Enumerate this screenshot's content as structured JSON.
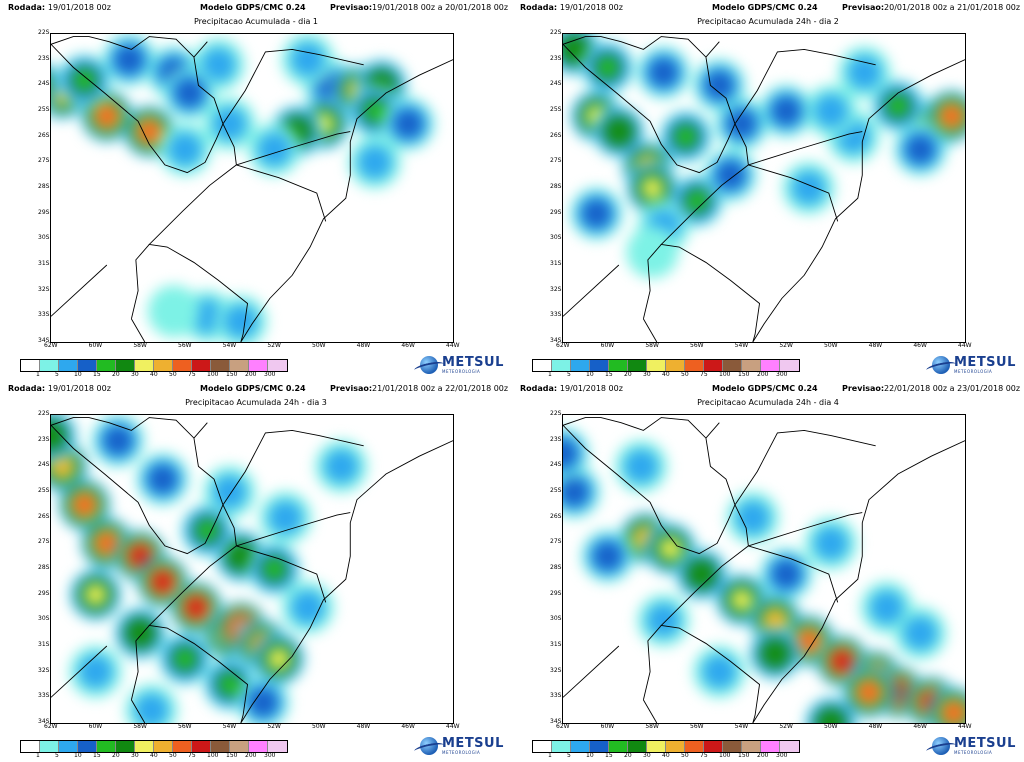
{
  "header": {
    "rodada_label": "Rodada:",
    "rodada_value": "19/01/2018 00z",
    "model": "Modelo GDPS/CMC 0.24",
    "previsao_label": "Previsao:"
  },
  "panels": [
    {
      "id": "p0",
      "subtitle": "Precipitacao Acumulada - dia 1",
      "previsao_value": "19/01/2018 00z a 20/01/2018 00z",
      "blobs": [
        {
          "lat": -24.3,
          "lon": -61.5,
          "val": 40
        },
        {
          "lat": -25.2,
          "lon": -59.5,
          "val": 50
        },
        {
          "lat": -25.8,
          "lon": -57.6,
          "val": 50
        },
        {
          "lat": -24.0,
          "lon": -62.8,
          "val": 30
        },
        {
          "lat": -23.8,
          "lon": -60.5,
          "val": 15
        },
        {
          "lat": -23.0,
          "lon": -58.5,
          "val": 10
        },
        {
          "lat": -23.5,
          "lon": -56.5,
          "val": 10
        },
        {
          "lat": -23.2,
          "lon": -54.5,
          "val": 5
        },
        {
          "lat": -24.3,
          "lon": -55.8,
          "val": 10
        },
        {
          "lat": -25.5,
          "lon": -54.0,
          "val": 5
        },
        {
          "lat": -26.5,
          "lon": -56.0,
          "val": 5
        },
        {
          "lat": -24.0,
          "lon": -49.5,
          "val": 10
        },
        {
          "lat": -24.2,
          "lon": -48.2,
          "val": 40
        },
        {
          "lat": -24.0,
          "lon": -47.2,
          "val": 20
        },
        {
          "lat": -25.5,
          "lon": -49.8,
          "val": 30
        },
        {
          "lat": -25.8,
          "lon": -51.0,
          "val": 20
        },
        {
          "lat": -25.0,
          "lon": -47.5,
          "val": 15
        },
        {
          "lat": -25.5,
          "lon": -46.0,
          "val": 10
        },
        {
          "lat": -27.0,
          "lon": -47.5,
          "val": 5
        },
        {
          "lat": -26.5,
          "lon": -52.0,
          "val": 5
        },
        {
          "lat": -23.0,
          "lon": -50.5,
          "val": 5
        },
        {
          "lat": -33.0,
          "lon": -55.0,
          "val": 5
        },
        {
          "lat": -33.2,
          "lon": -53.5,
          "val": 5
        },
        {
          "lat": -32.8,
          "lon": -56.5,
          "val": 1
        }
      ]
    },
    {
      "id": "p1",
      "subtitle": "Precipitacao Acumulada 24h - dia 2",
      "previsao_value": "20/01/2018 00z a 21/01/2018 00z",
      "blobs": [
        {
          "lat": -22.6,
          "lon": -61.5,
          "val": 20
        },
        {
          "lat": -23.3,
          "lon": -60.0,
          "val": 15
        },
        {
          "lat": -23.5,
          "lon": -57.5,
          "val": 10
        },
        {
          "lat": -24.0,
          "lon": -55.0,
          "val": 10
        },
        {
          "lat": -25.2,
          "lon": -60.5,
          "val": 30
        },
        {
          "lat": -25.8,
          "lon": -59.5,
          "val": 20
        },
        {
          "lat": -27.2,
          "lon": -58.2,
          "val": 40
        },
        {
          "lat": -28.0,
          "lon": -58.0,
          "val": 30
        },
        {
          "lat": -26.0,
          "lon": -56.5,
          "val": 15
        },
        {
          "lat": -28.5,
          "lon": -56.0,
          "val": 15
        },
        {
          "lat": -27.5,
          "lon": -54.5,
          "val": 10
        },
        {
          "lat": -25.5,
          "lon": -54.0,
          "val": 10
        },
        {
          "lat": -29.0,
          "lon": -60.5,
          "val": 10
        },
        {
          "lat": -29.5,
          "lon": -57.5,
          "val": 5
        },
        {
          "lat": -30.5,
          "lon": -58.0,
          "val": 1
        },
        {
          "lat": -25.0,
          "lon": -52.0,
          "val": 10
        },
        {
          "lat": -25.5,
          "lon": -45.3,
          "val": 40
        },
        {
          "lat": -25.2,
          "lon": -44.6,
          "val": 50
        },
        {
          "lat": -24.8,
          "lon": -47.0,
          "val": 15
        },
        {
          "lat": -26.5,
          "lon": -46.0,
          "val": 10
        },
        {
          "lat": -26.0,
          "lon": -49.0,
          "val": 5
        },
        {
          "lat": -25.0,
          "lon": -50.0,
          "val": 5
        },
        {
          "lat": -23.5,
          "lon": -48.5,
          "val": 5
        },
        {
          "lat": -28.0,
          "lon": -51.0,
          "val": 5
        }
      ]
    },
    {
      "id": "p2",
      "subtitle": "Precipitacao Acumulada 24h - dia 3",
      "previsao_value": "21/01/2018 00z a 22/01/2018 00z",
      "blobs": [
        {
          "lat": -24.0,
          "lon": -61.5,
          "val": 40
        },
        {
          "lat": -25.5,
          "lon": -60.5,
          "val": 50
        },
        {
          "lat": -27.0,
          "lon": -59.5,
          "val": 50
        },
        {
          "lat": -27.5,
          "lon": -58.0,
          "val": 75
        },
        {
          "lat": -28.5,
          "lon": -57.0,
          "val": 75
        },
        {
          "lat": -29.5,
          "lon": -55.5,
          "val": 75
        },
        {
          "lat": -30.5,
          "lon": -54.0,
          "val": 100
        },
        {
          "lat": -30.3,
          "lon": -53.5,
          "val": 150
        },
        {
          "lat": -31.0,
          "lon": -52.5,
          "val": 50
        },
        {
          "lat": -31.5,
          "lon": -51.8,
          "val": 30
        },
        {
          "lat": -29.0,
          "lon": -60.0,
          "val": 30
        },
        {
          "lat": -30.5,
          "lon": -58.0,
          "val": 20
        },
        {
          "lat": -31.5,
          "lon": -56.0,
          "val": 15
        },
        {
          "lat": -32.5,
          "lon": -54.0,
          "val": 15
        },
        {
          "lat": -33.2,
          "lon": -52.5,
          "val": 10
        },
        {
          "lat": -27.5,
          "lon": -53.5,
          "val": 20
        },
        {
          "lat": -28.0,
          "lon": -52.0,
          "val": 15
        },
        {
          "lat": -26.5,
          "lon": -55.0,
          "val": 15
        },
        {
          "lat": -23.0,
          "lon": -59.0,
          "val": 10
        },
        {
          "lat": -22.8,
          "lon": -62.0,
          "val": 20
        },
        {
          "lat": -24.5,
          "lon": -57.0,
          "val": 10
        },
        {
          "lat": -25.0,
          "lon": -54.0,
          "val": 5
        },
        {
          "lat": -26.0,
          "lon": -51.5,
          "val": 5
        },
        {
          "lat": -24.0,
          "lon": -49.0,
          "val": 5
        },
        {
          "lat": -29.5,
          "lon": -50.5,
          "val": 5
        },
        {
          "lat": -32.0,
          "lon": -60.0,
          "val": 5
        },
        {
          "lat": -33.5,
          "lon": -57.5,
          "val": 5
        }
      ]
    },
    {
      "id": "p3",
      "subtitle": "Precipitacao Acumulada 24h - dia 4",
      "previsao_value": "22/01/2018 00z a 23/01/2018 00z",
      "blobs": [
        {
          "lat": -26.8,
          "lon": -58.3,
          "val": 40
        },
        {
          "lat": -27.2,
          "lon": -57.2,
          "val": 30
        },
        {
          "lat": -28.2,
          "lon": -55.8,
          "val": 20
        },
        {
          "lat": -29.2,
          "lon": -54.0,
          "val": 30
        },
        {
          "lat": -30.0,
          "lon": -52.5,
          "val": 40
        },
        {
          "lat": -30.8,
          "lon": -51.0,
          "val": 50
        },
        {
          "lat": -31.6,
          "lon": -49.5,
          "val": 75
        },
        {
          "lat": -32.2,
          "lon": -48.0,
          "val": 75
        },
        {
          "lat": -32.8,
          "lon": -47.0,
          "val": 100
        },
        {
          "lat": -33.2,
          "lon": -45.5,
          "val": 75
        },
        {
          "lat": -33.6,
          "lon": -44.5,
          "val": 50
        },
        {
          "lat": -32.8,
          "lon": -48.3,
          "val": 50
        },
        {
          "lat": -31.3,
          "lon": -52.5,
          "val": 20
        },
        {
          "lat": -27.5,
          "lon": -60.0,
          "val": 10
        },
        {
          "lat": -25.0,
          "lon": -61.5,
          "val": 10
        },
        {
          "lat": -23.5,
          "lon": -62.0,
          "val": 10
        },
        {
          "lat": -24.0,
          "lon": -58.5,
          "val": 5
        },
        {
          "lat": -26.0,
          "lon": -53.5,
          "val": 5
        },
        {
          "lat": -28.2,
          "lon": -52.0,
          "val": 10
        },
        {
          "lat": -27.0,
          "lon": -50.0,
          "val": 5
        },
        {
          "lat": -29.5,
          "lon": -47.5,
          "val": 5
        },
        {
          "lat": -30.5,
          "lon": -46.0,
          "val": 5
        },
        {
          "lat": -30.0,
          "lon": -57.5,
          "val": 5
        },
        {
          "lat": -32.0,
          "lon": -55.0,
          "val": 5
        },
        {
          "lat": -34.0,
          "lon": -50.0,
          "val": 20
        }
      ]
    }
  ],
  "map": {
    "lon_range": [
      -62,
      -44
    ],
    "lat_range": [
      -34,
      -22
    ],
    "lat_ticks": [
      "22S",
      "23S",
      "24S",
      "25S",
      "26S",
      "27S",
      "28S",
      "29S",
      "30S",
      "31S",
      "32S",
      "33S",
      "34S"
    ],
    "lon_ticks": [
      "62W",
      "60W",
      "58W",
      "56W",
      "54W",
      "52W",
      "50W",
      "48W",
      "46W",
      "44W"
    ],
    "coastline": [
      [
        -44.0,
        -23.0
      ],
      [
        -45.5,
        -23.6
      ],
      [
        -47.0,
        -24.3
      ],
      [
        -48.3,
        -25.3
      ],
      [
        -48.6,
        -26.2
      ],
      [
        -48.6,
        -27.5
      ],
      [
        -48.8,
        -28.4
      ],
      [
        -49.8,
        -29.2
      ],
      [
        -50.4,
        -30.3
      ],
      [
        -51.2,
        -31.4
      ],
      [
        -52.2,
        -32.3
      ],
      [
        -53.0,
        -33.3
      ],
      [
        -53.5,
        -34.0
      ]
    ],
    "borders": [
      [
        [
          -62.0,
          -22.4
        ],
        [
          -61.0,
          -22.1
        ],
        [
          -60.3,
          -22.1
        ],
        [
          -59.4,
          -22.3
        ],
        [
          -58.4,
          -22.6
        ],
        [
          -57.6,
          -22.1
        ],
        [
          -56.4,
          -22.2
        ],
        [
          -55.6,
          -22.9
        ],
        [
          -55.4,
          -24.0
        ],
        [
          -54.7,
          -24.5
        ],
        [
          -54.3,
          -25.5
        ]
      ],
      [
        [
          -62.0,
          -22.4
        ],
        [
          -61.0,
          -23.3
        ],
        [
          -59.6,
          -24.3
        ],
        [
          -58.1,
          -25.4
        ],
        [
          -57.6,
          -26.3
        ],
        [
          -56.9,
          -27.1
        ],
        [
          -55.9,
          -27.4
        ],
        [
          -55.1,
          -27.0
        ],
        [
          -54.6,
          -26.1
        ],
        [
          -54.3,
          -25.5
        ]
      ],
      [
        [
          -54.3,
          -25.5
        ],
        [
          -53.8,
          -26.4
        ],
        [
          -53.7,
          -27.1
        ],
        [
          -54.9,
          -27.9
        ],
        [
          -56.1,
          -28.9
        ],
        [
          -57.6,
          -30.2
        ],
        [
          -56.8,
          -30.3
        ],
        [
          -55.6,
          -30.9
        ],
        [
          -54.5,
          -31.6
        ],
        [
          -53.2,
          -32.5
        ],
        [
          -53.4,
          -33.7
        ],
        [
          -53.5,
          -34.0
        ]
      ],
      [
        [
          -58.4,
          -33.1
        ],
        [
          -58.1,
          -32.0
        ],
        [
          -58.2,
          -30.8
        ],
        [
          -57.6,
          -30.2
        ]
      ],
      [
        [
          -58.4,
          -33.1
        ],
        [
          -57.8,
          -34.0
        ]
      ],
      [
        [
          -53.7,
          -27.1
        ],
        [
          -51.5,
          -26.5
        ],
        [
          -49.2,
          -25.9
        ],
        [
          -48.6,
          -25.8
        ]
      ],
      [
        [
          -53.7,
          -27.1
        ],
        [
          -51.8,
          -27.6
        ],
        [
          -50.1,
          -28.2
        ],
        [
          -49.7,
          -29.3
        ]
      ],
      [
        [
          -54.3,
          -25.5
        ],
        [
          -53.3,
          -24.2
        ],
        [
          -52.4,
          -22.7
        ],
        [
          -51.2,
          -22.6
        ],
        [
          -50.0,
          -22.8
        ],
        [
          -48.0,
          -23.2
        ]
      ],
      [
        [
          -55.6,
          -22.9
        ],
        [
          -55.0,
          -22.3
        ]
      ],
      [
        [
          -62.0,
          -33.0
        ],
        [
          -59.5,
          -31.0
        ]
      ]
    ]
  },
  "colorbar": {
    "labels": [
      "1",
      "5",
      "10",
      "15",
      "20",
      "30",
      "40",
      "50",
      "75",
      "100",
      "150",
      "200",
      "300"
    ],
    "colors": [
      "#ffffff",
      "#7df2e6",
      "#2ea8ee",
      "#1660c8",
      "#22bb22",
      "#118811",
      "#f0f060",
      "#eeb030",
      "#ee6020",
      "#cc1818",
      "#8a5a3a",
      "#c8a080",
      "#ff80ff",
      "#f0c8f0"
    ]
  },
  "logo": {
    "name": "METSUL",
    "tagline": "METEOROLOGIA"
  }
}
